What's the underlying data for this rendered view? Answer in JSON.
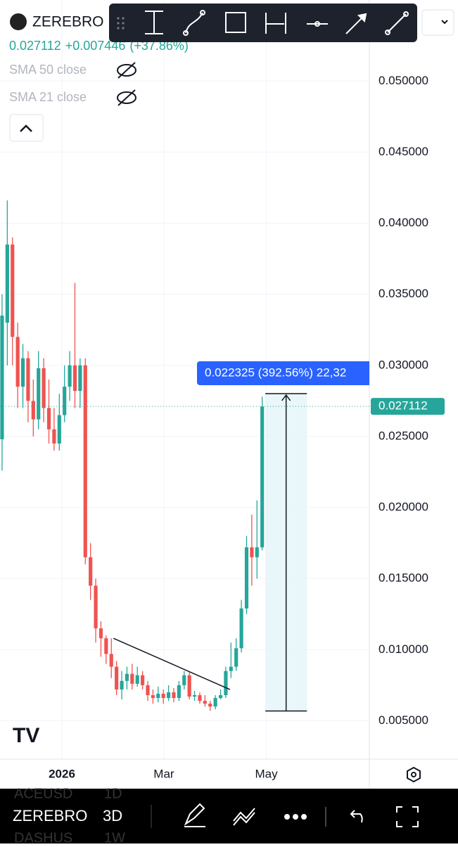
{
  "header": {
    "symbol": "ZEREBRO",
    "price": "0.027112",
    "change": "+0.007446",
    "change_pct": "(+37.86%)"
  },
  "indicators": [
    "SMA 50 close",
    "SMA 21 close"
  ],
  "chart_data": {
    "type": "candlestick",
    "x": [
      0,
      1,
      2,
      3,
      4,
      5,
      6,
      7,
      8,
      9,
      10,
      11,
      12,
      13,
      14,
      15,
      16,
      17,
      18,
      19,
      20,
      21,
      22,
      23,
      24,
      25,
      26,
      27,
      28,
      29,
      30,
      31,
      32,
      33,
      34,
      35,
      36,
      37,
      38,
      39,
      40,
      41,
      42,
      43,
      44,
      45,
      46,
      47,
      48,
      49,
      50
    ],
    "open": [
      0.0248,
      0.033,
      0.0385,
      0.032,
      0.0285,
      0.0305,
      0.0275,
      0.0262,
      0.0298,
      0.027,
      0.0255,
      0.0245,
      0.0265,
      0.0285,
      0.03,
      0.0282,
      0.03,
      0.0165,
      0.0145,
      0.0115,
      0.0108,
      0.0097,
      0.0088,
      0.0072,
      0.0078,
      0.0083,
      0.0076,
      0.0082,
      0.0075,
      0.0068,
      0.0066,
      0.0069,
      0.0066,
      0.007,
      0.0066,
      0.0075,
      0.0082,
      0.0067,
      0.0068,
      0.0064,
      0.0062,
      0.006,
      0.0066,
      0.0068,
      0.0085,
      0.0088,
      0.0101,
      0.0129,
      0.0172,
      0.0165,
      0.0172
    ],
    "high": [
      0.035,
      0.0416,
      0.039,
      0.033,
      0.0315,
      0.031,
      0.029,
      0.031,
      0.0305,
      0.029,
      0.027,
      0.028,
      0.03,
      0.031,
      0.0358,
      0.0305,
      0.0305,
      0.0175,
      0.015,
      0.012,
      0.011,
      0.0108,
      0.0092,
      0.0085,
      0.0088,
      0.009,
      0.0088,
      0.0085,
      0.0078,
      0.0072,
      0.0074,
      0.0072,
      0.0075,
      0.0073,
      0.0078,
      0.0085,
      0.0084,
      0.0071,
      0.007,
      0.0068,
      0.0064,
      0.0068,
      0.0072,
      0.0088,
      0.0105,
      0.0108,
      0.0135,
      0.018,
      0.0195,
      0.0205,
      0.0278
    ],
    "low": [
      0.0226,
      0.03,
      0.03,
      0.027,
      0.027,
      0.026,
      0.025,
      0.0255,
      0.026,
      0.0245,
      0.024,
      0.024,
      0.026,
      0.0275,
      0.027,
      0.027,
      0.016,
      0.0135,
      0.0105,
      0.0095,
      0.009,
      0.008,
      0.0068,
      0.0065,
      0.0072,
      0.0072,
      0.0074,
      0.0072,
      0.0064,
      0.0062,
      0.0063,
      0.0062,
      0.0064,
      0.0063,
      0.0064,
      0.0072,
      0.0065,
      0.0064,
      0.0062,
      0.006,
      0.0057,
      0.0058,
      0.0065,
      0.0066,
      0.008,
      0.0085,
      0.0098,
      0.0125,
      0.0145,
      0.015,
      0.017
    ],
    "close": [
      0.0335,
      0.0385,
      0.032,
      0.0285,
      0.0305,
      0.0275,
      0.0262,
      0.0298,
      0.027,
      0.0255,
      0.0245,
      0.0265,
      0.0285,
      0.03,
      0.0282,
      0.03,
      0.0165,
      0.0145,
      0.0115,
      0.0108,
      0.0097,
      0.0088,
      0.0072,
      0.0078,
      0.0083,
      0.0076,
      0.0082,
      0.0075,
      0.0068,
      0.0066,
      0.0069,
      0.0066,
      0.007,
      0.0066,
      0.0075,
      0.0082,
      0.0067,
      0.0068,
      0.0064,
      0.0062,
      0.006,
      0.0066,
      0.0068,
      0.0085,
      0.0088,
      0.0101,
      0.0129,
      0.0172,
      0.0165,
      0.0172,
      0.027112
    ],
    "up_color": "#26a69a",
    "down_color": "#ef5350",
    "xlim": [
      -0.4,
      70.6
    ],
    "xticks": [
      {
        "value": 11.5,
        "label": "2026"
      },
      {
        "value": 31.1,
        "label": "Mar"
      },
      {
        "value": 50.8,
        "label": "May"
      }
    ],
    "ylim": [
      0.0023,
      0.0557
    ],
    "yticks": [
      {
        "value": 0.005,
        "label": "0.005000"
      },
      {
        "value": 0.01,
        "label": "0.010000"
      },
      {
        "value": 0.015,
        "label": "0.015000"
      },
      {
        "value": 0.02,
        "label": "0.020000"
      },
      {
        "value": 0.025,
        "label": "0.025000"
      },
      {
        "value": 0.03,
        "label": "0.030000"
      },
      {
        "value": 0.035,
        "label": "0.035000"
      },
      {
        "value": 0.04,
        "label": "0.040000"
      },
      {
        "value": 0.045,
        "label": "0.045000"
      },
      {
        "value": 0.05,
        "label": "0.050000"
      }
    ],
    "grid": true,
    "last_price": {
      "value": 0.027112,
      "label": "0.027112"
    },
    "trendline": {
      "x": [
        21.4,
        43.8
      ],
      "y": [
        0.0108,
        0.0072
      ]
    },
    "measure": {
      "from": 0.005687,
      "to": 0.028012,
      "x": [
        50.6,
        58.6
      ],
      "label": "0.022325 (392.56%) 22,32"
    }
  },
  "bottom_bar": {
    "symbol": "ZEREBRO",
    "interval": "3D",
    "ghost": [
      "ACEUSD",
      "1D",
      "DASHUS",
      "1W"
    ]
  }
}
